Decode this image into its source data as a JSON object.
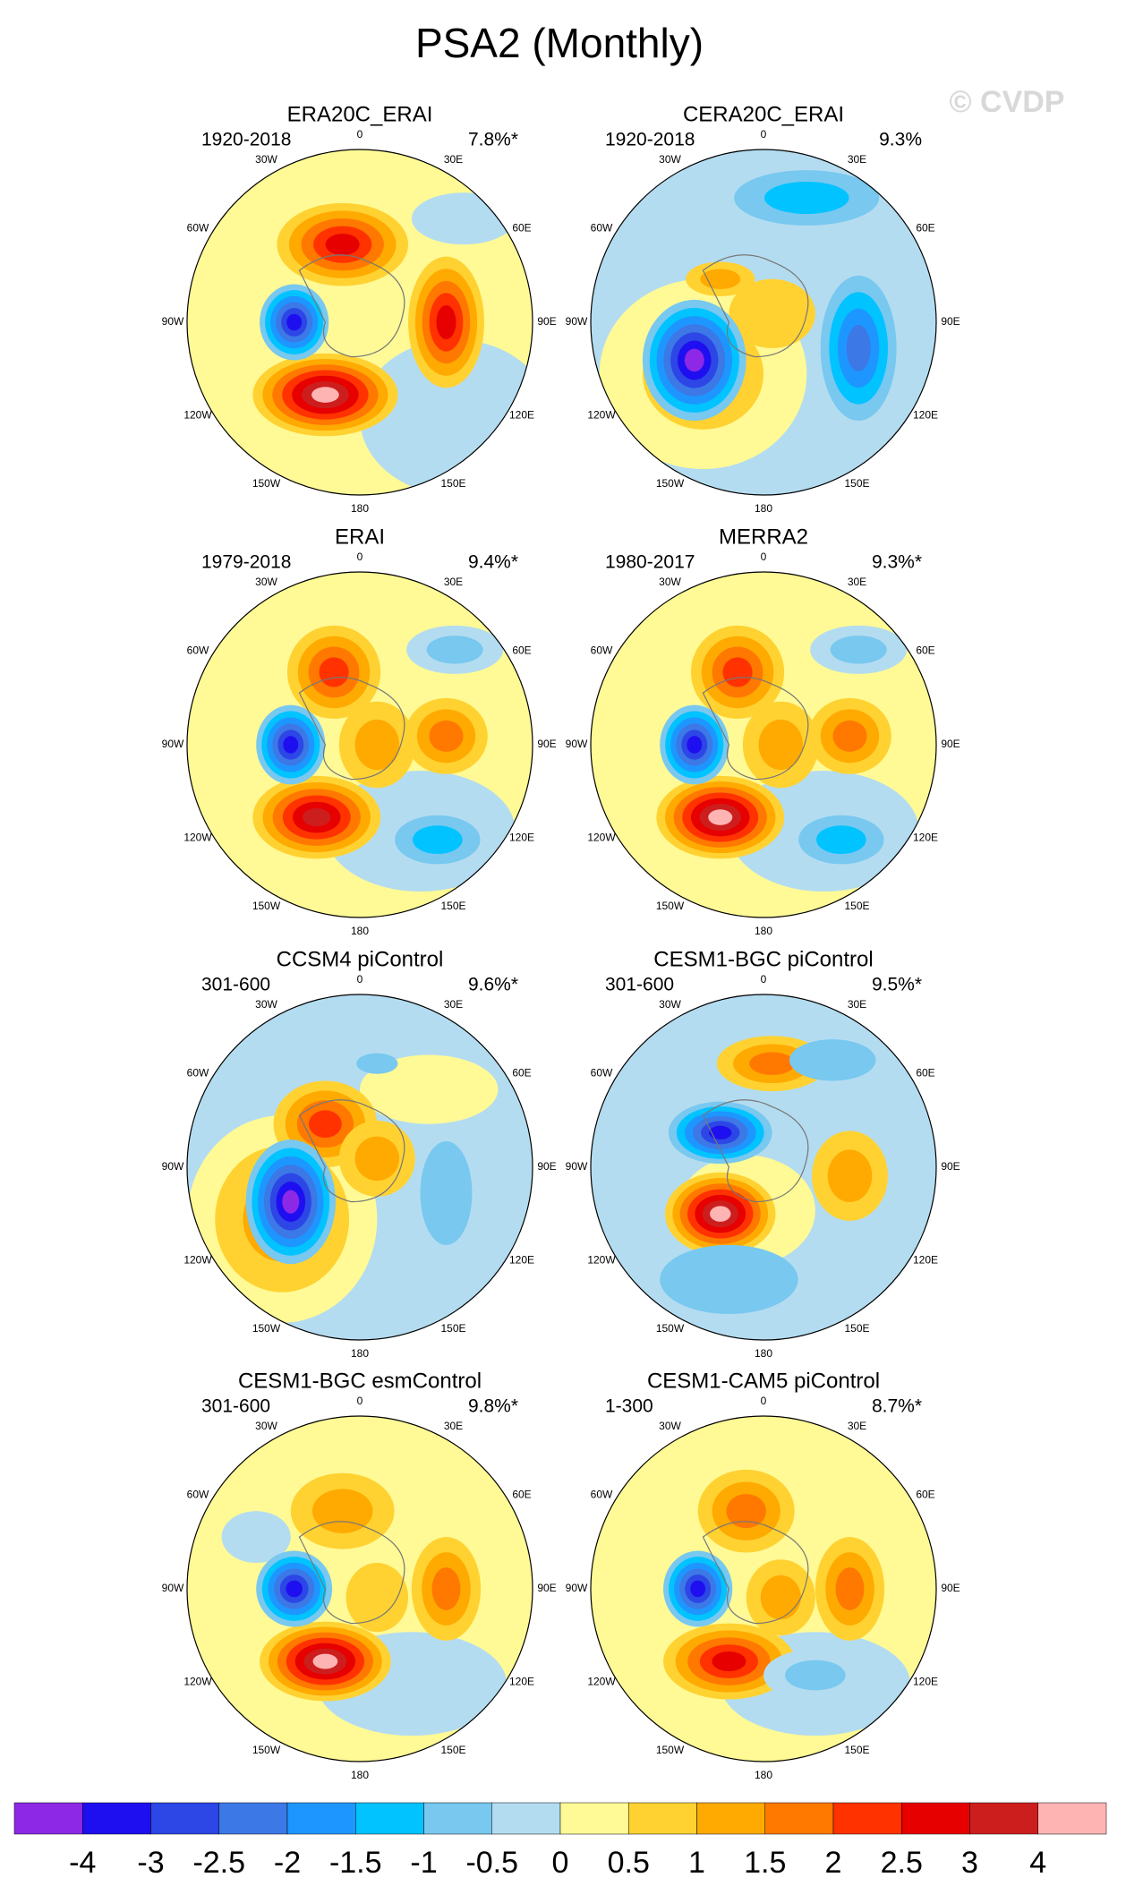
{
  "title": "PSA2 (Monthly)",
  "watermark": "© CVDP",
  "longitude_labels": [
    "0",
    "30E",
    "60E",
    "90E",
    "120E",
    "150E",
    "180",
    "150W",
    "120W",
    "90W",
    "60W",
    "30W"
  ],
  "panels": [
    {
      "title": "ERA20C_ERAI",
      "period": "1920-2018",
      "variance": "7.8%*"
    },
    {
      "title": "CERA20C_ERAI",
      "period": "1920-2018",
      "variance": "9.3%"
    },
    {
      "title": "ERAI",
      "period": "1979-2018",
      "variance": "9.4%*"
    },
    {
      "title": "MERRA2",
      "period": "1980-2017",
      "variance": "9.3%*"
    },
    {
      "title": "CCSM4 piControl",
      "period": "301-600",
      "variance": "9.6%*"
    },
    {
      "title": "CESM1-BGC piControl",
      "period": "301-600",
      "variance": "9.5%*"
    },
    {
      "title": "CESM1-BGC esmControl",
      "period": "301-600",
      "variance": "9.8%*"
    },
    {
      "title": "CESM1-CAM5 piControl",
      "period": "1-300",
      "variance": "8.7%*"
    }
  ],
  "colorbar": {
    "colors": [
      "#8c28e6",
      "#1e0ff0",
      "#2d46e6",
      "#3c78e6",
      "#1e96ff",
      "#00c3ff",
      "#78c8f0",
      "#b4dcf0",
      "#fffa96",
      "#ffd232",
      "#ffaa00",
      "#ff7800",
      "#ff3200",
      "#e60000",
      "#cd1e1e",
      "#ffb4b4"
    ],
    "ticks": [
      -4,
      -3,
      -2.5,
      -2,
      -1.5,
      -1,
      -0.5,
      0,
      0.5,
      1,
      1.5,
      2,
      2.5,
      3,
      4
    ]
  }
}
